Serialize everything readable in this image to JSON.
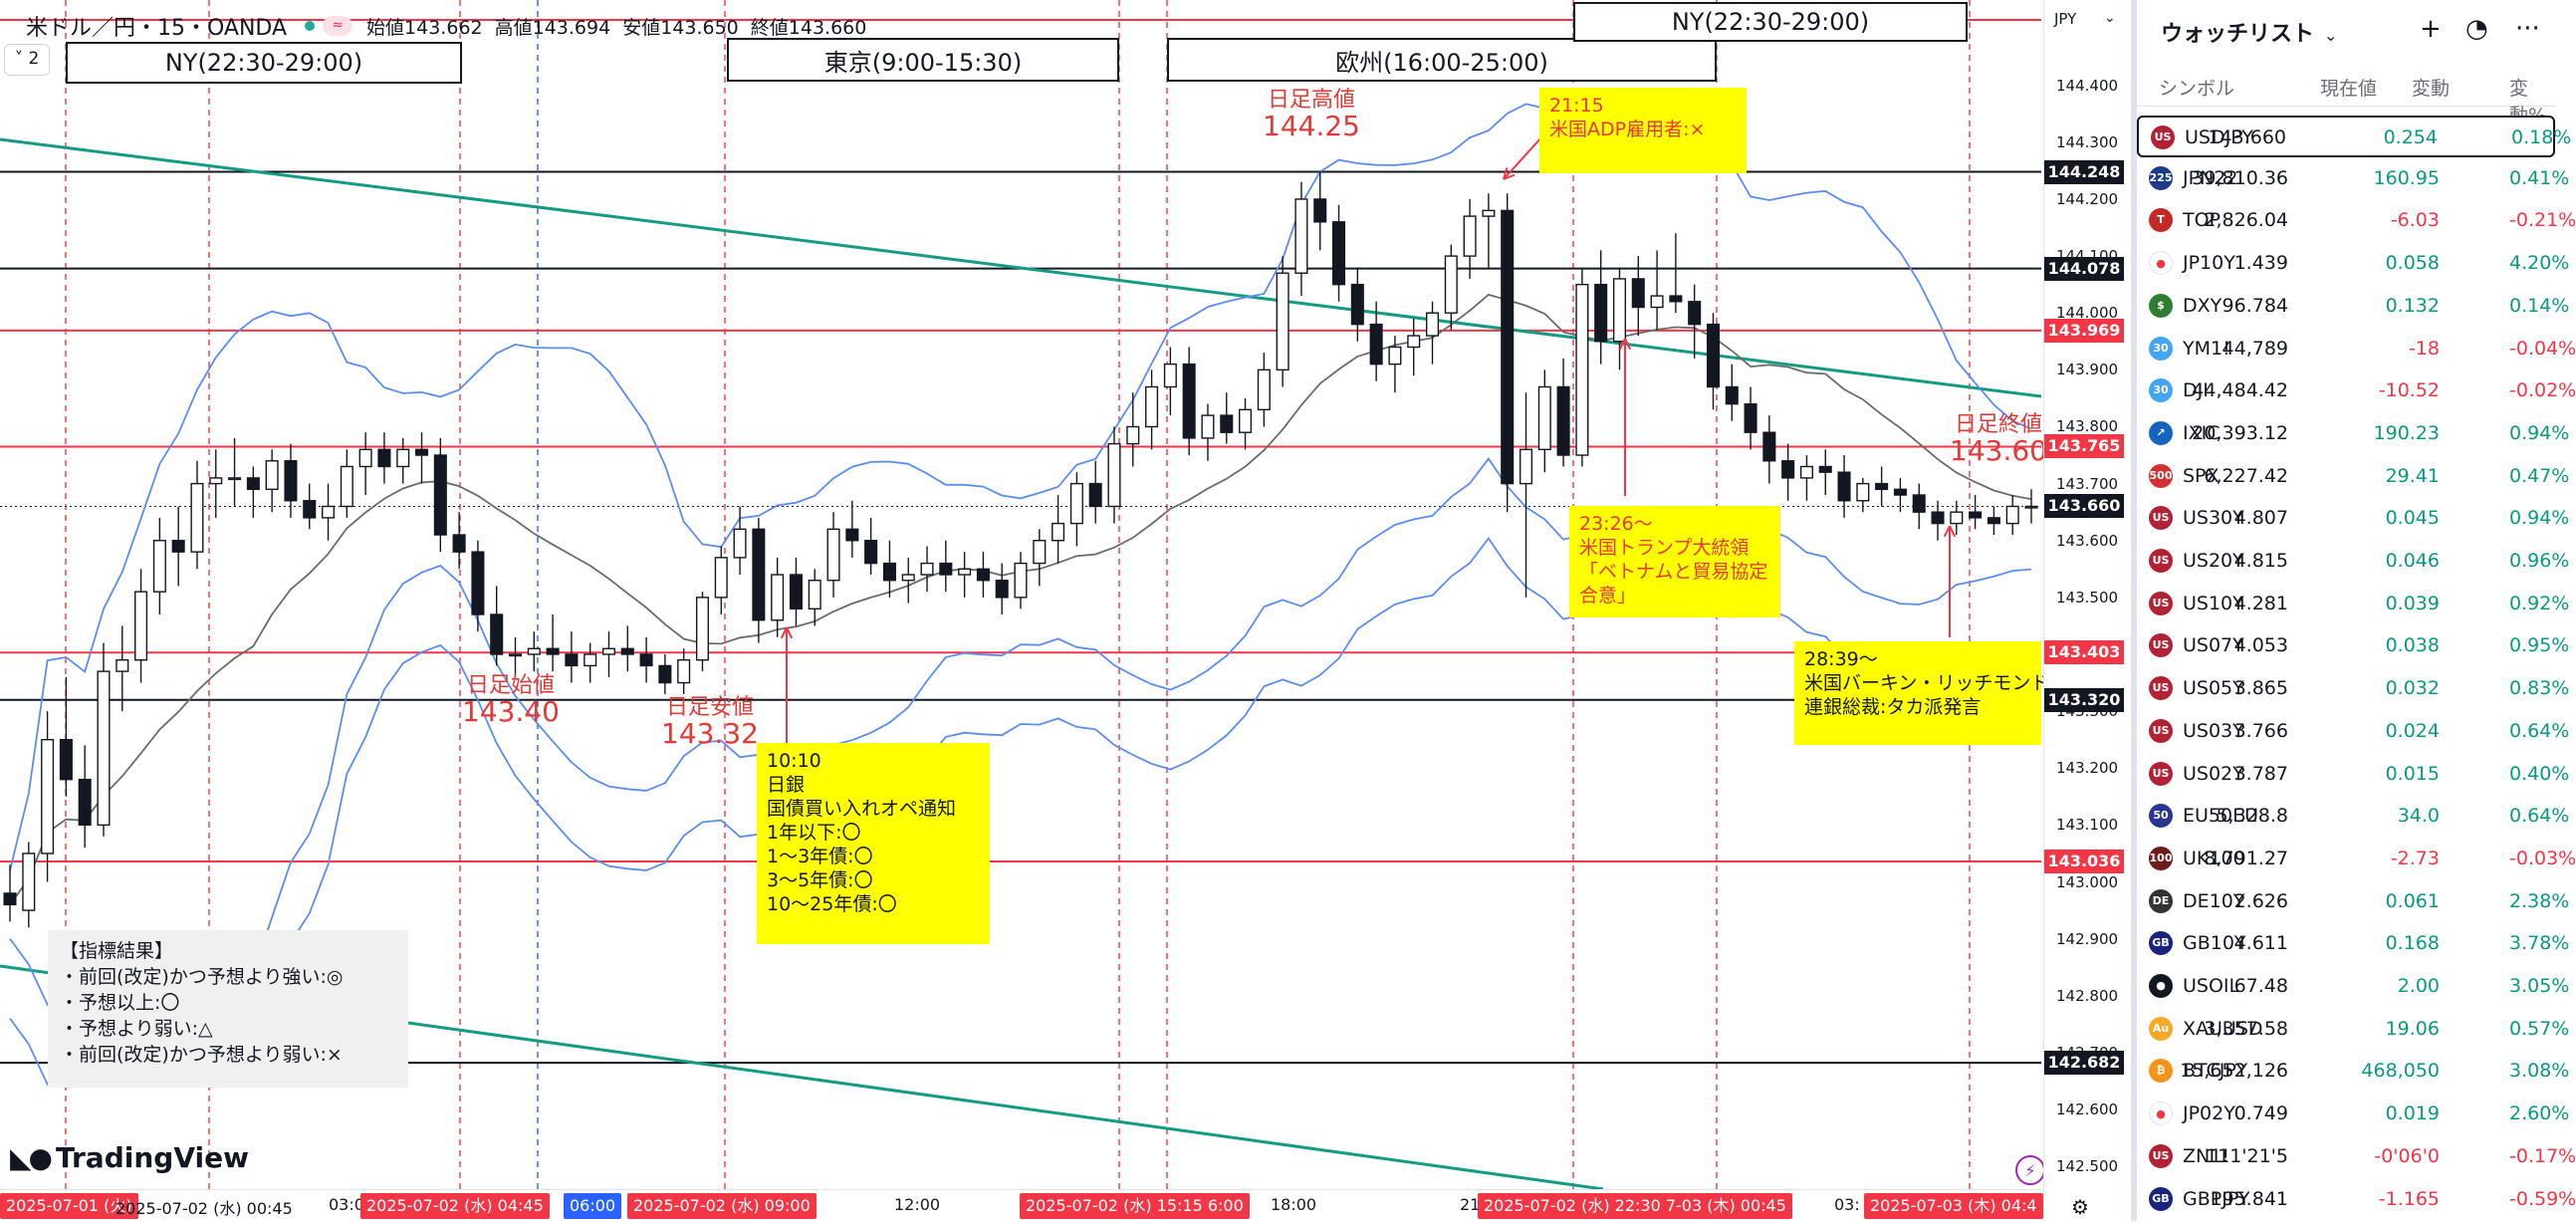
{
  "legend": {
    "symbol": "米ドル／円・15・OANDA",
    "open": "始値143.662",
    "high": "高値143.694",
    "low": "安値143.650",
    "close": "終値143.660",
    "collapse": "2",
    "pill": "≈"
  },
  "sessions": [
    {
      "label": "NY(22:30-29:00)"
    },
    {
      "label": "東京(9:00-15:30)"
    },
    {
      "label": "欧州(16:00-25:00)"
    },
    {
      "label": "NY(22:30-29:00)"
    }
  ],
  "annotations": {
    "high_label": "日足高値",
    "high_value": "144.25",
    "open_label": "日足始値",
    "open_value": "143.40",
    "low_label": "日足安値",
    "low_value": "143.32",
    "close_label": "日足終値",
    "close_value": "143.60"
  },
  "notes": {
    "adp": "21:15\n米国ADP雇用者:×",
    "boj": "10:10\n日銀\n国債買い入れオペ通知\n1年以下:〇\n1～3年債:〇\n3～5年債:〇\n10～25年債:〇",
    "trump": "23:26～\n米国トランプ大統領\n「ベトナムと貿易協定\n合意」",
    "barkin": "28:39～\n米国バーキン・リッチモンド\n連銀総裁:タカ派発言",
    "legend_box": "【指標結果】\n・前回(改定)かつ予想より強い:◎\n・予想以上:〇\n・予想より弱い:△\n・前回(改定)かつ予想より弱い:×"
  },
  "logo": "TradingView",
  "price_axis": {
    "currency": "JPY",
    "ticks": [
      "144.400",
      "144.300",
      "144.200",
      "144.100",
      "144.000",
      "143.900",
      "143.800",
      "143.700",
      "143.600",
      "143.500",
      "143.400",
      "143.300",
      "143.200",
      "143.100",
      "143.000",
      "142.900",
      "142.800",
      "142.700",
      "142.600",
      "142.500"
    ],
    "labels": [
      {
        "value": "144.248",
        "color": "black"
      },
      {
        "value": "144.078",
        "color": "black"
      },
      {
        "value": "143.969",
        "color": "red"
      },
      {
        "value": "143.765",
        "color": "red"
      },
      {
        "value": "143.660",
        "color": "black"
      },
      {
        "value": "143.403",
        "color": "red"
      },
      {
        "value": "143.320",
        "color": "black"
      },
      {
        "value": "143.036",
        "color": "red"
      },
      {
        "value": "142.682",
        "color": "black"
      }
    ]
  },
  "time_axis": {
    "labels": [
      "03:00",
      "12:00",
      "18:00",
      "21",
      "03:"
    ],
    "pills": [
      "2025-07-01 (火)",
      "2025-07-02 (水)  00:45",
      "2025-07-02 (水)  04:45",
      "06:00",
      "2025-07-02 (水)  09:00",
      "2025-07-02 (水)  15:15  6:00",
      "2025-07-02 (水)  22:30  7-03 (木)  00:45",
      "2025-07-03 (木)  04:4"
    ]
  },
  "chart_data": {
    "type": "candlestick",
    "title": "米ドル／円・15・OANDA",
    "ylim": [
      142.46,
      144.48
    ],
    "price_scale": "right",
    "horizontal_lines": [
      {
        "value": 144.248,
        "color": "#131722"
      },
      {
        "value": 144.078,
        "color": "#131722"
      },
      {
        "value": 143.969,
        "color": "#f23645"
      },
      {
        "value": 143.765,
        "color": "#f23645"
      },
      {
        "value": 143.403,
        "color": "#f23645"
      },
      {
        "value": 143.32,
        "color": "#131722"
      },
      {
        "value": 143.036,
        "color": "#f23645"
      },
      {
        "value": 142.682,
        "color": "#131722"
      },
      {
        "value": 144.46,
        "color": "#f23645"
      }
    ],
    "current_price": 143.66,
    "candles": [
      [
        142.98,
        143.03,
        142.93,
        142.96
      ],
      [
        142.95,
        143.07,
        142.92,
        143.05
      ],
      [
        143.05,
        143.3,
        143.0,
        143.25
      ],
      [
        143.25,
        143.36,
        143.15,
        143.18
      ],
      [
        143.18,
        143.24,
        143.06,
        143.1
      ],
      [
        143.1,
        143.42,
        143.08,
        143.37
      ],
      [
        143.37,
        143.45,
        143.3,
        143.39
      ],
      [
        143.39,
        143.55,
        143.35,
        143.51
      ],
      [
        143.51,
        143.64,
        143.47,
        143.6
      ],
      [
        143.6,
        143.66,
        143.52,
        143.58
      ],
      [
        143.58,
        143.74,
        143.55,
        143.7
      ],
      [
        143.7,
        143.76,
        143.64,
        143.71
      ],
      [
        143.71,
        143.78,
        143.66,
        143.71
      ],
      [
        143.71,
        143.73,
        143.64,
        143.69
      ],
      [
        143.69,
        143.76,
        143.65,
        143.74
      ],
      [
        143.74,
        143.77,
        143.64,
        143.67
      ],
      [
        143.67,
        143.7,
        143.62,
        143.64
      ],
      [
        143.64,
        143.7,
        143.6,
        143.66
      ],
      [
        143.66,
        143.76,
        143.64,
        143.73
      ],
      [
        143.73,
        143.79,
        143.68,
        143.76
      ],
      [
        143.76,
        143.79,
        143.7,
        143.73
      ],
      [
        143.73,
        143.78,
        143.7,
        143.76
      ],
      [
        143.76,
        143.79,
        143.7,
        143.75
      ],
      [
        143.75,
        143.78,
        143.58,
        143.61
      ],
      [
        143.61,
        143.65,
        143.55,
        143.58
      ],
      [
        143.58,
        143.6,
        143.44,
        143.47
      ],
      [
        143.47,
        143.52,
        143.38,
        143.4
      ],
      [
        143.4,
        143.43,
        143.36,
        143.4
      ],
      [
        143.4,
        143.44,
        143.37,
        143.41
      ],
      [
        143.41,
        143.47,
        143.37,
        143.4
      ],
      [
        143.4,
        143.44,
        143.35,
        143.38
      ],
      [
        143.38,
        143.42,
        143.35,
        143.4
      ],
      [
        143.4,
        143.44,
        143.36,
        143.41
      ],
      [
        143.41,
        143.45,
        143.37,
        143.4
      ],
      [
        143.4,
        143.43,
        143.35,
        143.38
      ],
      [
        143.38,
        143.4,
        143.33,
        143.35
      ],
      [
        143.35,
        143.41,
        143.33,
        143.39
      ],
      [
        143.39,
        143.51,
        143.37,
        143.5
      ],
      [
        143.5,
        143.59,
        143.47,
        143.57
      ],
      [
        143.57,
        143.66,
        143.54,
        143.62
      ],
      [
        143.62,
        143.64,
        143.42,
        143.46
      ],
      [
        143.46,
        143.57,
        143.43,
        143.54
      ],
      [
        143.54,
        143.57,
        143.45,
        143.48
      ],
      [
        143.48,
        143.55,
        143.45,
        143.53
      ],
      [
        143.53,
        143.65,
        143.5,
        143.62
      ],
      [
        143.62,
        143.67,
        143.57,
        143.6
      ],
      [
        143.6,
        143.64,
        143.54,
        143.56
      ],
      [
        143.56,
        143.6,
        143.5,
        143.53
      ],
      [
        143.53,
        143.57,
        143.49,
        143.54
      ],
      [
        143.54,
        143.59,
        143.51,
        143.56
      ],
      [
        143.56,
        143.6,
        143.51,
        143.54
      ],
      [
        143.54,
        143.58,
        143.5,
        143.55
      ],
      [
        143.55,
        143.58,
        143.5,
        143.53
      ],
      [
        143.53,
        143.56,
        143.47,
        143.5
      ],
      [
        143.5,
        143.58,
        143.48,
        143.56
      ],
      [
        143.56,
        143.62,
        143.52,
        143.6
      ],
      [
        143.6,
        143.68,
        143.56,
        143.63
      ],
      [
        143.63,
        143.72,
        143.59,
        143.7
      ],
      [
        143.7,
        143.74,
        143.63,
        143.66
      ],
      [
        143.66,
        143.8,
        143.63,
        143.77
      ],
      [
        143.77,
        143.86,
        143.73,
        143.8
      ],
      [
        143.8,
        143.9,
        143.76,
        143.87
      ],
      [
        143.87,
        143.94,
        143.82,
        143.91
      ],
      [
        143.91,
        143.94,
        143.75,
        143.78
      ],
      [
        143.78,
        143.84,
        143.74,
        143.82
      ],
      [
        143.82,
        143.86,
        143.77,
        143.79
      ],
      [
        143.79,
        143.85,
        143.76,
        143.83
      ],
      [
        143.83,
        143.93,
        143.8,
        143.9
      ],
      [
        143.9,
        144.1,
        143.87,
        144.07
      ],
      [
        144.07,
        144.23,
        144.03,
        144.2
      ],
      [
        144.2,
        144.25,
        144.11,
        144.16
      ],
      [
        144.16,
        144.19,
        144.02,
        144.05
      ],
      [
        144.05,
        144.08,
        143.95,
        143.98
      ],
      [
        143.98,
        144.02,
        143.88,
        143.91
      ],
      [
        143.91,
        143.96,
        143.86,
        143.94
      ],
      [
        143.94,
        143.99,
        143.89,
        143.96
      ],
      [
        143.96,
        144.02,
        143.91,
        144.0
      ],
      [
        144.0,
        144.12,
        143.97,
        144.1
      ],
      [
        144.1,
        144.2,
        144.06,
        144.17
      ],
      [
        144.17,
        144.21,
        144.08,
        144.18
      ],
      [
        144.18,
        144.21,
        143.65,
        143.7
      ],
      [
        143.7,
        143.86,
        143.5,
        143.76
      ],
      [
        143.76,
        143.9,
        143.72,
        143.87
      ],
      [
        143.87,
        143.92,
        143.73,
        143.75
      ],
      [
        143.75,
        144.08,
        143.73,
        144.05
      ],
      [
        144.05,
        144.11,
        143.91,
        143.95
      ],
      [
        143.95,
        144.08,
        143.9,
        144.06
      ],
      [
        144.06,
        144.1,
        143.96,
        144.01
      ],
      [
        144.01,
        144.11,
        143.97,
        144.03
      ],
      [
        144.03,
        144.14,
        144.0,
        144.02
      ],
      [
        144.02,
        144.05,
        143.92,
        143.98
      ],
      [
        143.98,
        144.0,
        143.83,
        143.87
      ],
      [
        143.87,
        143.91,
        143.81,
        143.84
      ],
      [
        143.84,
        143.87,
        143.76,
        143.79
      ],
      [
        143.79,
        143.82,
        143.7,
        143.74
      ],
      [
        143.74,
        143.77,
        143.67,
        143.71
      ],
      [
        143.71,
        143.75,
        143.67,
        143.73
      ],
      [
        143.73,
        143.76,
        143.68,
        143.72
      ],
      [
        143.72,
        143.75,
        143.64,
        143.67
      ],
      [
        143.67,
        143.71,
        143.65,
        143.7
      ],
      [
        143.7,
        143.73,
        143.66,
        143.69
      ],
      [
        143.69,
        143.71,
        143.65,
        143.68
      ],
      [
        143.68,
        143.7,
        143.62,
        143.65
      ],
      [
        143.65,
        143.67,
        143.6,
        143.63
      ],
      [
        143.63,
        143.67,
        143.61,
        143.65
      ],
      [
        143.65,
        143.68,
        143.62,
        143.64
      ],
      [
        143.64,
        143.66,
        143.61,
        143.63
      ],
      [
        143.63,
        143.68,
        143.61,
        143.66
      ],
      [
        143.66,
        143.69,
        143.63,
        143.66
      ]
    ],
    "indicators": [
      "bollinger_upper",
      "sma_middle",
      "bollinger_lower",
      "trendline_upper",
      "trendline_lower"
    ]
  },
  "watchlist": {
    "title": "ウォッチリスト",
    "columns": {
      "symbol": "シンボル",
      "last": "現在値",
      "chg": "変動",
      "pct": "変動%"
    },
    "rows": [
      {
        "sym": "USDJPY",
        "last": "143.660",
        "chg": "0.254",
        "pct": "0.18%",
        "dir": "up",
        "icon": "US",
        "icolor": "#b22234"
      },
      {
        "sym": "JPN22",
        "last": "39,810.36",
        "chg": "160.95",
        "pct": "0.41%",
        "dir": "up",
        "icon": "225",
        "icolor": "#1e3a8a"
      },
      {
        "sym": "TOP",
        "last": "2,826.04",
        "chg": "-6.03",
        "pct": "-0.21%",
        "dir": "dn",
        "icon": "T",
        "icolor": "#c62828"
      },
      {
        "sym": "JP10Y",
        "last": "1.439",
        "chg": "0.058",
        "pct": "4.20%",
        "dir": "up",
        "icon": "●",
        "icolor": "#ffffff"
      },
      {
        "sym": "DXY",
        "last": "96.784",
        "chg": "0.132",
        "pct": "0.14%",
        "dir": "up",
        "icon": "$",
        "icolor": "#2e7d32"
      },
      {
        "sym": "YM1!",
        "last": "44,789",
        "chg": "-18",
        "pct": "-0.04%",
        "dir": "dn",
        "icon": "30",
        "icolor": "#42a5f5"
      },
      {
        "sym": "DJI",
        "last": "44,484.42",
        "chg": "-10.52",
        "pct": "-0.02%",
        "dir": "dn",
        "icon": "30",
        "icolor": "#42a5f5"
      },
      {
        "sym": "IXIC",
        "last": "20,393.12",
        "chg": "190.23",
        "pct": "0.94%",
        "dir": "up",
        "icon": "↗",
        "icolor": "#1565c0"
      },
      {
        "sym": "SPX",
        "last": "6,227.42",
        "chg": "29.41",
        "pct": "0.47%",
        "dir": "up",
        "icon": "500",
        "icolor": "#d32f2f"
      },
      {
        "sym": "US30Y",
        "last": "4.807",
        "chg": "0.045",
        "pct": "0.94%",
        "dir": "up",
        "icon": "US",
        "icolor": "#b22234"
      },
      {
        "sym": "US20Y",
        "last": "4.815",
        "chg": "0.046",
        "pct": "0.96%",
        "dir": "up",
        "icon": "US",
        "icolor": "#b22234"
      },
      {
        "sym": "US10Y",
        "last": "4.281",
        "chg": "0.039",
        "pct": "0.92%",
        "dir": "up",
        "icon": "US",
        "icolor": "#b22234"
      },
      {
        "sym": "US07Y",
        "last": "4.053",
        "chg": "0.038",
        "pct": "0.95%",
        "dir": "up",
        "icon": "US",
        "icolor": "#b22234"
      },
      {
        "sym": "US05Y",
        "last": "3.865",
        "chg": "0.032",
        "pct": "0.83%",
        "dir": "up",
        "icon": "US",
        "icolor": "#b22234"
      },
      {
        "sym": "US03Y",
        "last": "3.766",
        "chg": "0.024",
        "pct": "0.64%",
        "dir": "up",
        "icon": "US",
        "icolor": "#b22234"
      },
      {
        "sym": "US02Y",
        "last": "3.787",
        "chg": "0.015",
        "pct": "0.40%",
        "dir": "up",
        "icon": "US",
        "icolor": "#b22234"
      },
      {
        "sym": "EU50EU",
        "last": "5,328.8",
        "chg": "34.0",
        "pct": "0.64%",
        "dir": "up",
        "icon": "50",
        "icolor": "#283593"
      },
      {
        "sym": "UK100",
        "last": "8,791.27",
        "chg": "-2.73",
        "pct": "-0.03%",
        "dir": "dn",
        "icon": "100",
        "icolor": "#6d1b1b"
      },
      {
        "sym": "DE10Y",
        "last": "2.626",
        "chg": "0.061",
        "pct": "2.38%",
        "dir": "up",
        "icon": "DE",
        "icolor": "#333333"
      },
      {
        "sym": "GB10Y",
        "last": "4.611",
        "chg": "0.168",
        "pct": "3.78%",
        "dir": "up",
        "icon": "GB",
        "icolor": "#1a237e"
      },
      {
        "sym": "USOIL",
        "last": "67.48",
        "chg": "2.00",
        "pct": "3.05%",
        "dir": "up",
        "icon": "●",
        "icolor": "#131722"
      },
      {
        "sym": "XAUUSD",
        "last": "3,357.58",
        "chg": "19.06",
        "pct": "0.57%",
        "dir": "up",
        "icon": "Au",
        "icolor": "#f9a825"
      },
      {
        "sym": "BTCJPY",
        "last": "15,652,126",
        "chg": "468,050",
        "pct": "3.08%",
        "dir": "up",
        "icon": "₿",
        "icolor": "#f7931a"
      },
      {
        "sym": "JP02Y",
        "last": "0.749",
        "chg": "0.019",
        "pct": "2.60%",
        "dir": "up",
        "icon": "●",
        "icolor": "#ffffff"
      },
      {
        "sym": "ZN1!",
        "last": "111'21'5",
        "chg": "-0'06'0",
        "pct": "-0.17%",
        "dir": "dn",
        "icon": "US",
        "icolor": "#b22234"
      },
      {
        "sym": "GBPJPY",
        "last": "195.841",
        "chg": "-1.165",
        "pct": "-0.59%",
        "dir": "dn",
        "icon": "GB",
        "icolor": "#1a237e"
      }
    ]
  },
  "colors": {
    "red_line": "#f23645",
    "black_line": "#131722",
    "band": "#5b8def",
    "sma": "#6b6b6b",
    "trend": "#139b83",
    "note_bg": "#ffff00"
  }
}
